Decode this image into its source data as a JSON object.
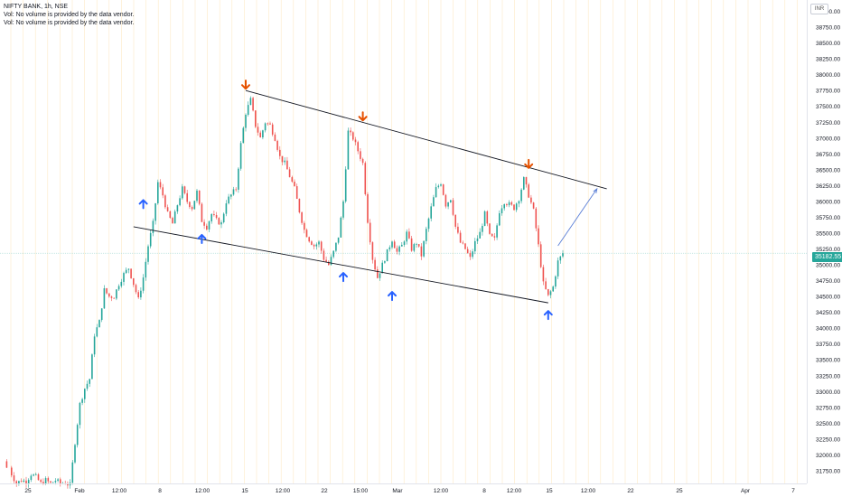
{
  "legend": {
    "symbol_line": "NIFTY BANK, 1h, NSE",
    "vol_line_1": "Vol: No volume is provided by the data vendor.",
    "vol_line_2": "Vol: No volume is provided by the data vendor."
  },
  "currency": "INR",
  "last_price_label": "35182.55",
  "colors": {
    "up": "#26a69a",
    "down": "#ef5350",
    "trendline": "#131722",
    "arrow_up": "#2962ff",
    "arrow_down": "#e65100",
    "projection": "#5b7fd6",
    "gridline": "#fde9c6"
  },
  "chart_data": {
    "type": "candlestick",
    "ylim": [
      31550,
      39150
    ],
    "y_ticks": [
      39000,
      38750,
      38500,
      38250,
      38000,
      37750,
      37500,
      37250,
      37000,
      36750,
      36500,
      36250,
      36000,
      35750,
      35500,
      35250,
      35000,
      34750,
      34500,
      34250,
      34000,
      33750,
      33500,
      33250,
      33000,
      32750,
      32500,
      32250,
      32000,
      31750
    ],
    "y_tick_labels": [
      "39000.00",
      "38750.00",
      "38500.00",
      "38250.00",
      "38000.00",
      "37750.00",
      "37500.00",
      "37250.00",
      "37000.00",
      "36750.00",
      "36500.00",
      "36250.00",
      "36000.00",
      "35750.00",
      "35500.00",
      "35250.00",
      "35000.00",
      "34750.00",
      "34500.00",
      "34250.00",
      "34000.00",
      "33750.00",
      "33500.00",
      "33250.00",
      "33000.00",
      "32750.00",
      "32500.00",
      "32250.00",
      "32000.00",
      "31750.00"
    ],
    "x_ticks": [
      "25",
      "Feb",
      "12:00",
      "8",
      "12:00",
      "15",
      "12:00",
      "22",
      "15:00",
      "Mar",
      "12:00",
      "8",
      "12:00",
      "15",
      "12:00",
      "22",
      "25",
      "Apr",
      "7"
    ],
    "close_path": [
      [
        0,
        31900
      ],
      [
        2,
        31700
      ],
      [
        3,
        31550
      ],
      [
        4,
        31600
      ],
      [
        5,
        31580
      ],
      [
        6,
        31700
      ],
      [
        7,
        31650
      ],
      [
        8,
        31550
      ],
      [
        9,
        31600
      ],
      [
        10,
        31550
      ],
      [
        11,
        31600
      ],
      [
        12,
        31550
      ],
      [
        13,
        31560
      ],
      [
        14,
        31520
      ],
      [
        15,
        32200
      ],
      [
        16,
        32800
      ],
      [
        17,
        33050
      ],
      [
        18,
        33200
      ],
      [
        19,
        33900
      ],
      [
        20,
        34100
      ],
      [
        21,
        34600
      ],
      [
        22,
        34500
      ],
      [
        23,
        34500
      ],
      [
        24,
        34700
      ],
      [
        25,
        34850
      ],
      [
        26,
        34950
      ],
      [
        27,
        34700
      ],
      [
        28,
        34450
      ],
      [
        29,
        34800
      ],
      [
        30,
        35300
      ],
      [
        31,
        35650
      ],
      [
        32,
        36300
      ],
      [
        33,
        36100
      ],
      [
        34,
        35800
      ],
      [
        35,
        35650
      ],
      [
        36,
        35950
      ],
      [
        37,
        36200
      ],
      [
        38,
        36000
      ],
      [
        39,
        35900
      ],
      [
        40,
        36150
      ],
      [
        41,
        35700
      ],
      [
        42,
        35600
      ],
      [
        43,
        35800
      ],
      [
        44,
        35700
      ],
      [
        45,
        35650
      ],
      [
        46,
        36000
      ],
      [
        47,
        36100
      ],
      [
        48,
        36200
      ],
      [
        49,
        36900
      ],
      [
        50,
        37400
      ],
      [
        51,
        37600
      ],
      [
        52,
        37200
      ],
      [
        53,
        37000
      ],
      [
        54,
        37250
      ],
      [
        55,
        37200
      ],
      [
        56,
        37000
      ],
      [
        57,
        36700
      ],
      [
        58,
        36600
      ],
      [
        59,
        36400
      ],
      [
        60,
        36200
      ],
      [
        61,
        35850
      ],
      [
        62,
        35550
      ],
      [
        63,
        35400
      ],
      [
        64,
        35300
      ],
      [
        65,
        35350
      ],
      [
        66,
        35100
      ],
      [
        67,
        35000
      ],
      [
        68,
        35200
      ],
      [
        69,
        35450
      ],
      [
        70,
        36000
      ],
      [
        71,
        37100
      ],
      [
        72,
        37000
      ],
      [
        73,
        36800
      ],
      [
        74,
        36600
      ],
      [
        75,
        35700
      ],
      [
        76,
        35100
      ],
      [
        77,
        34800
      ],
      [
        78,
        35000
      ],
      [
        79,
        35200
      ],
      [
        80,
        35400
      ],
      [
        81,
        35200
      ],
      [
        82,
        35300
      ],
      [
        83,
        35500
      ],
      [
        84,
        35250
      ],
      [
        85,
        35350
      ],
      [
        86,
        35150
      ],
      [
        87,
        35550
      ],
      [
        88,
        35900
      ],
      [
        89,
        36200
      ],
      [
        90,
        36300
      ],
      [
        91,
        35950
      ],
      [
        92,
        36050
      ],
      [
        93,
        35600
      ],
      [
        94,
        35350
      ],
      [
        95,
        35250
      ],
      [
        96,
        35100
      ],
      [
        97,
        35350
      ],
      [
        98,
        35500
      ],
      [
        99,
        35800
      ],
      [
        100,
        35450
      ],
      [
        101,
        35400
      ],
      [
        102,
        35850
      ],
      [
        103,
        36000
      ],
      [
        104,
        35950
      ],
      [
        105,
        35900
      ],
      [
        106,
        36050
      ],
      [
        107,
        36350
      ],
      [
        108,
        36100
      ],
      [
        109,
        35850
      ],
      [
        110,
        35300
      ],
      [
        111,
        34700
      ],
      [
        112,
        34500
      ],
      [
        113,
        34650
      ],
      [
        114,
        35050
      ],
      [
        115,
        35182
      ]
    ],
    "channel_upper": [
      [
        50,
        37750
      ],
      [
        124,
        36200
      ]
    ],
    "channel_lower": [
      [
        27,
        35600
      ],
      [
        112,
        34400
      ]
    ],
    "projection_line": [
      [
        114,
        35300
      ],
      [
        122,
        36200
      ]
    ],
    "markers": [
      {
        "type": "up",
        "i": 29,
        "v": 35950
      },
      {
        "type": "up",
        "i": 41,
        "v": 35400
      },
      {
        "type": "down",
        "i": 50,
        "v": 37850
      },
      {
        "type": "up",
        "i": 70,
        "v": 34800
      },
      {
        "type": "down",
        "i": 74,
        "v": 37350
      },
      {
        "type": "up",
        "i": 80,
        "v": 34500
      },
      {
        "type": "down",
        "i": 108,
        "v": 36600
      },
      {
        "type": "up",
        "i": 112,
        "v": 34200
      }
    ],
    "last_price": 35182.55
  }
}
